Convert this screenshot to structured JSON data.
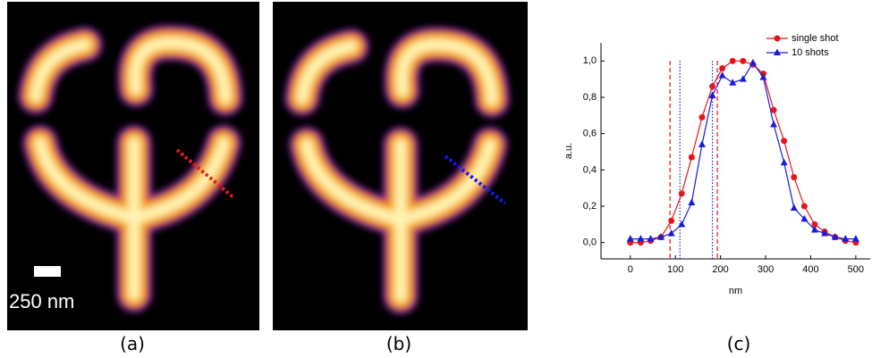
{
  "panels": {
    "a": "(a)",
    "b": "(b)",
    "c": "(c)"
  },
  "scale_bar": "250 nm",
  "chart_data": {
    "type": "line",
    "x_label": "nm",
    "y_label": "a.u.",
    "x": [
      0,
      23,
      45,
      68,
      91,
      114,
      136,
      159,
      182,
      204,
      227,
      250,
      272,
      295,
      318,
      341,
      363,
      386,
      409,
      431,
      454,
      477,
      500
    ],
    "series": [
      {
        "name": "single shot",
        "color": "#e8141b",
        "marker": "circle",
        "values": [
          0.0,
          0.0,
          0.01,
          0.03,
          0.12,
          0.27,
          0.47,
          0.69,
          0.86,
          0.96,
          1.0,
          1.0,
          0.98,
          0.93,
          0.73,
          0.56,
          0.36,
          0.2,
          0.1,
          0.06,
          0.03,
          0.01,
          0.0
        ]
      },
      {
        "name": "10 shots",
        "color": "#1a1adb",
        "marker": "triangle",
        "values": [
          0.02,
          0.02,
          0.02,
          0.03,
          0.05,
          0.1,
          0.22,
          0.54,
          0.81,
          0.92,
          0.88,
          0.9,
          0.99,
          0.91,
          0.65,
          0.44,
          0.19,
          0.13,
          0.07,
          0.05,
          0.03,
          0.02,
          0.02
        ]
      }
    ],
    "vlines": [
      {
        "x": 88,
        "color": "#e8141b",
        "style": "dashed"
      },
      {
        "x": 193,
        "color": "#e8141b",
        "style": "dashed"
      },
      {
        "x": 110,
        "color": "#1a1adb",
        "style": "dotted"
      },
      {
        "x": 182,
        "color": "#1a1adb",
        "style": "dotted"
      }
    ],
    "xlim": [
      -65,
      532
    ],
    "ylim": [
      -0.09,
      1.1
    ],
    "xticks": [
      0,
      100,
      200,
      300,
      400,
      500
    ],
    "yticks": [
      {
        "value": 0,
        "label": "0,0"
      },
      {
        "value": 0.2,
        "label": "0,2"
      },
      {
        "value": 0.4,
        "label": "0,4"
      },
      {
        "value": 0.6,
        "label": "0,6"
      },
      {
        "value": 0.8,
        "label": "0,8"
      },
      {
        "value": 1.0,
        "label": "1,0"
      }
    ],
    "legend": "top-right"
  }
}
